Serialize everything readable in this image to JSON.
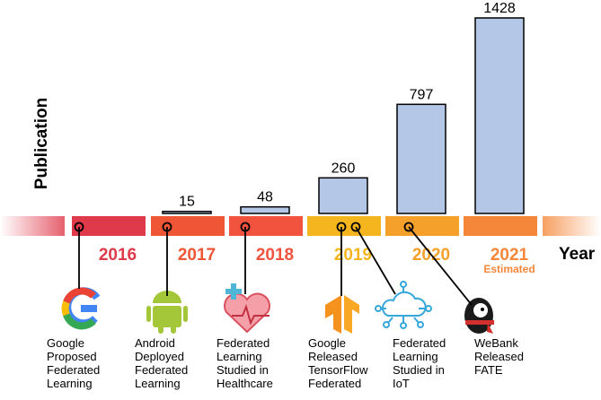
{
  "chart_data": {
    "type": "bar",
    "y_label": "Publication",
    "x_label": "Year",
    "categories": [
      "2016",
      "2017",
      "2018",
      "2019",
      "2020",
      "2021"
    ],
    "values": [
      null,
      15,
      48,
      260,
      797,
      1428
    ],
    "color": "#b4c7e7",
    "category_colors": [
      "#de3a4a",
      "#ee5636",
      "#f1533f",
      "#f5b51f",
      "#f6a02c",
      "#f5873a"
    ],
    "annotation": "Estimated",
    "events": [
      [
        "Google",
        "Proposed",
        "Federated",
        "Learning"
      ],
      [
        "Android",
        "Deployed",
        "Federated",
        "Learning"
      ],
      [
        "Federated",
        "Learning",
        "Studied in",
        "Healthcare"
      ],
      [
        "Google",
        "Released",
        "TensorFlow",
        "Federated"
      ],
      [
        "Federated",
        "Learning",
        "Studied in",
        "IoT"
      ],
      [
        "WeBank",
        "Released",
        "FATE"
      ]
    ]
  }
}
